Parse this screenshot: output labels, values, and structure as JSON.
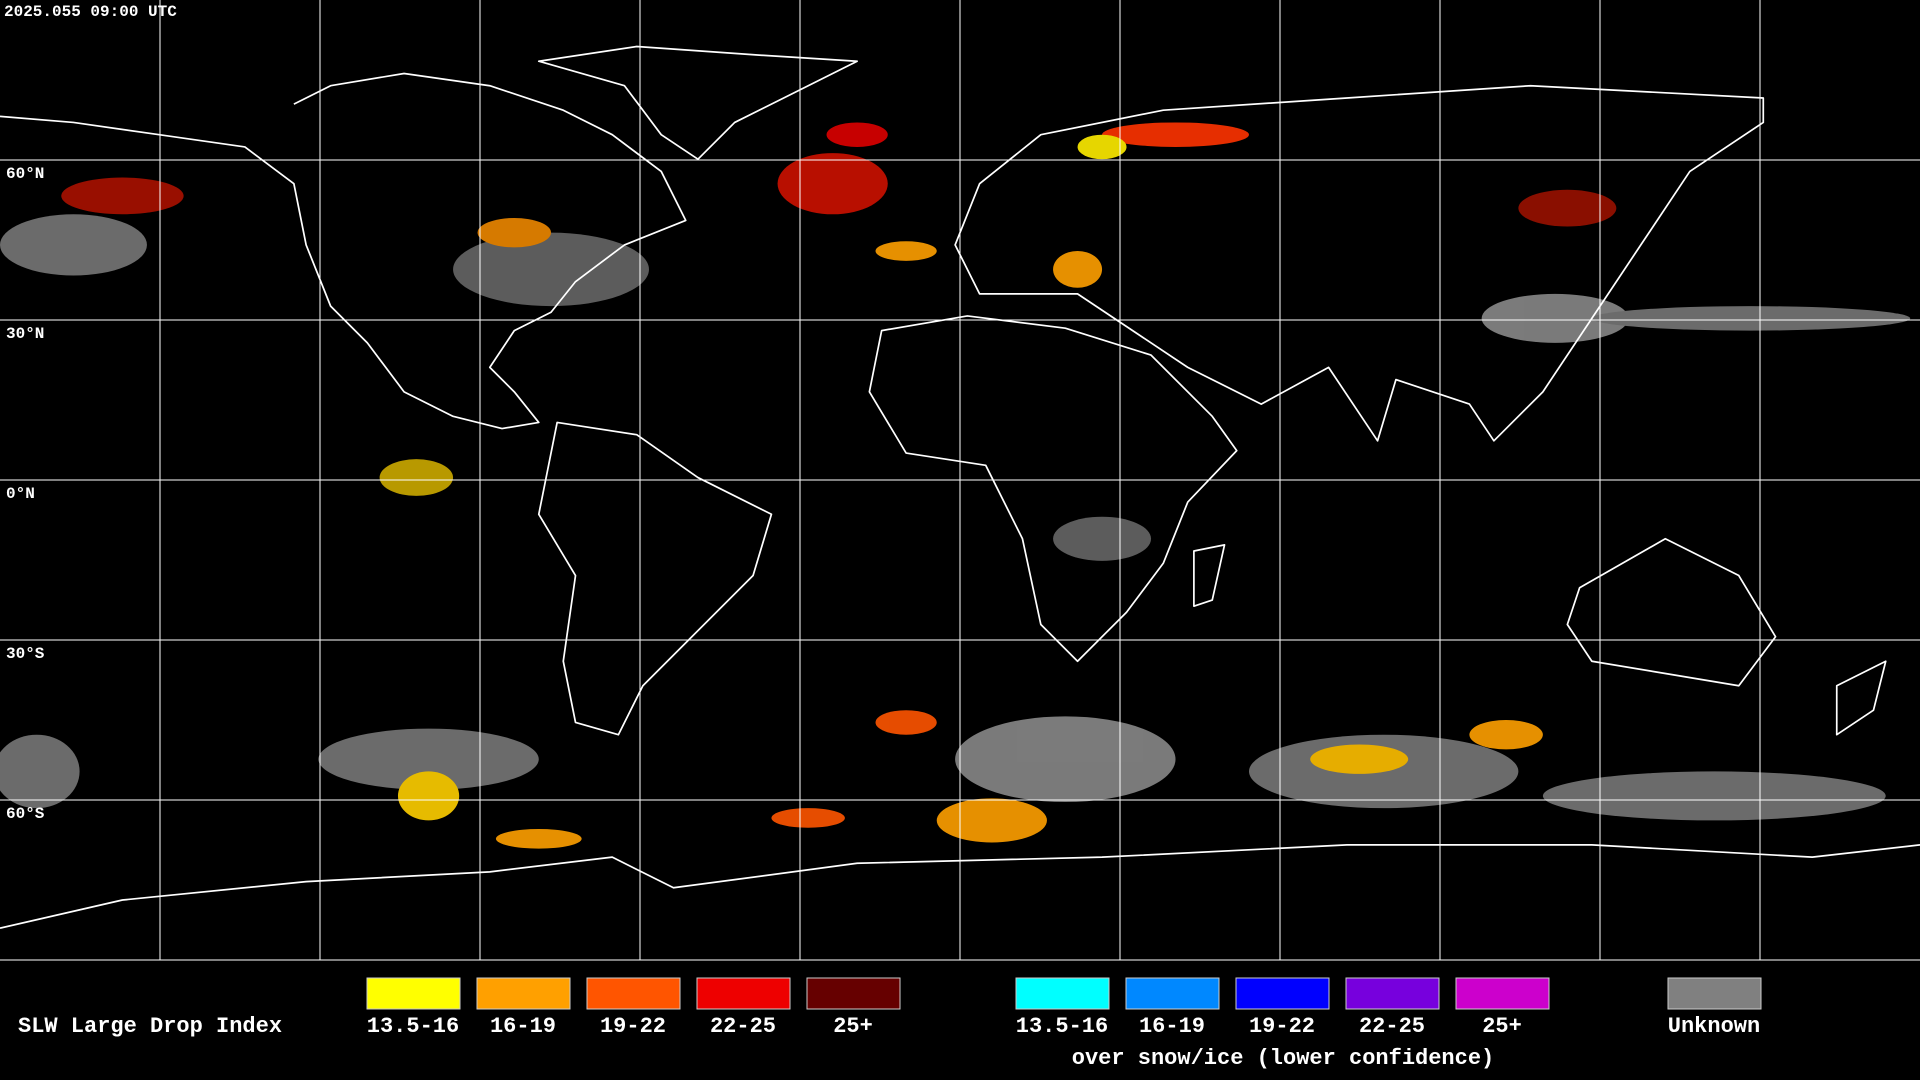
{
  "header": {
    "timestamp": "2025.055 09:00 UTC"
  },
  "map": {
    "latitude_labels": [
      "60°N",
      "30°N",
      "0°N",
      "30°S",
      "60°S"
    ]
  },
  "legend": {
    "title": "SLW Large Drop Index",
    "items": [
      {
        "label": "13.5-16",
        "color": "#ffff00"
      },
      {
        "label": "16-19",
        "color": "#ffa000"
      },
      {
        "label": "19-22",
        "color": "#ff5500"
      },
      {
        "label": "22-25",
        "color": "#ee0000"
      },
      {
        "label": "25+",
        "color": "#660000"
      }
    ],
    "snow_ice_items": [
      {
        "label": "13.5-16",
        "color": "#00ffff"
      },
      {
        "label": "16-19",
        "color": "#0088ff"
      },
      {
        "label": "19-22",
        "color": "#0000ff"
      },
      {
        "label": "22-25",
        "color": "#7700dd"
      },
      {
        "label": "25+",
        "color": "#cc00cc"
      }
    ],
    "snow_ice_note": "over snow/ice (lower confidence)",
    "unknown": {
      "label": "Unknown",
      "color": "#808080"
    }
  }
}
